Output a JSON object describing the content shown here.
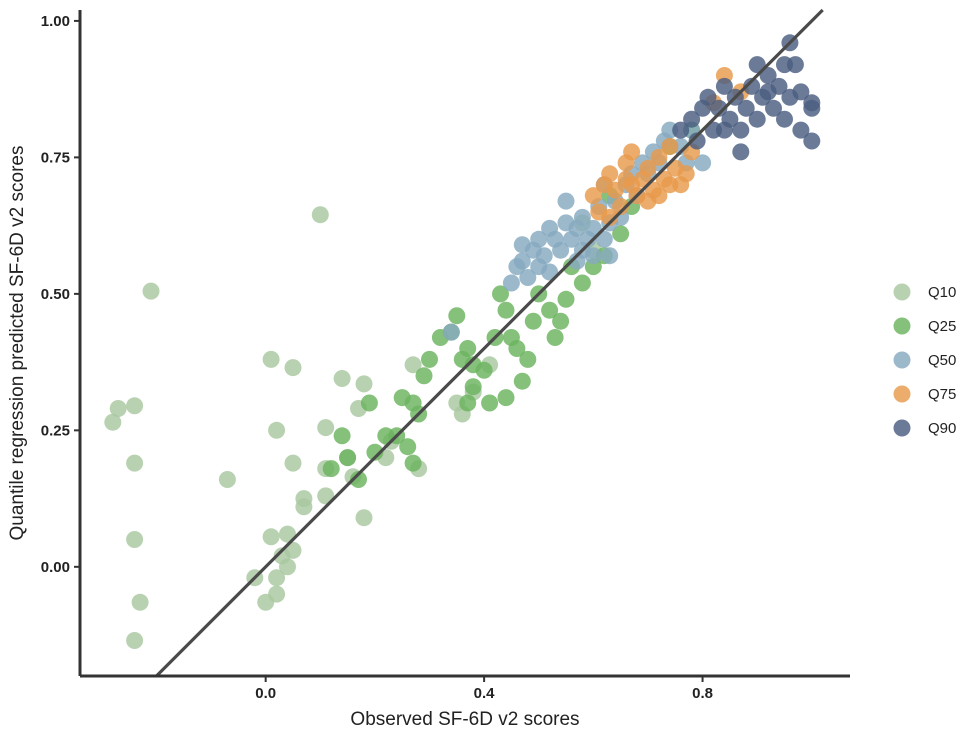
{
  "chart_data": {
    "type": "scatter",
    "title": "",
    "xlabel": "Observed SF-6D v2 scores",
    "ylabel": "Quantile regression predicted SF-6D v2 scores",
    "xlim": [
      -0.34,
      1.07
    ],
    "ylim": [
      -0.2,
      1.02
    ],
    "x_ticks": [
      {
        "value": 0.0,
        "label": "0.0"
      },
      {
        "value": 0.4,
        "label": "0.4"
      },
      {
        "value": 0.8,
        "label": "0.8"
      }
    ],
    "y_ticks": [
      {
        "value": 0.0,
        "label": "0.00"
      },
      {
        "value": 0.25,
        "label": "0.25"
      },
      {
        "value": 0.5,
        "label": "0.50"
      },
      {
        "value": 0.75,
        "label": "0.75"
      },
      {
        "value": 1.0,
        "label": "1.00"
      }
    ],
    "grid": false,
    "legend_position": "right",
    "reference_line": {
      "type": "identity",
      "color": "#4a4a4a"
    },
    "series": [
      {
        "name": "Q10",
        "color": "#a8c8a0",
        "points": [
          [
            -0.28,
            0.265
          ],
          [
            -0.27,
            0.29
          ],
          [
            -0.24,
            0.295
          ],
          [
            -0.24,
            0.19
          ],
          [
            -0.24,
            0.05
          ],
          [
            -0.23,
            -0.065
          ],
          [
            -0.24,
            -0.135
          ],
          [
            -0.21,
            0.505
          ],
          [
            -0.07,
            0.16
          ],
          [
            0.01,
            0.38
          ],
          [
            0.02,
            0.25
          ],
          [
            0.05,
            0.365
          ],
          [
            0.05,
            0.19
          ],
          [
            0.07,
            0.125
          ],
          [
            0.07,
            0.11
          ],
          [
            0.1,
            0.645
          ],
          [
            0.11,
            0.255
          ],
          [
            0.11,
            0.18
          ],
          [
            0.11,
            0.13
          ],
          [
            0.14,
            0.345
          ],
          [
            0.15,
            0.2
          ],
          [
            0.16,
            0.165
          ],
          [
            0.17,
            0.29
          ],
          [
            0.18,
            0.335
          ],
          [
            0.18,
            0.09
          ],
          [
            0.04,
            0.06
          ],
          [
            0.03,
            0.02
          ],
          [
            0.01,
            0.055
          ],
          [
            0.02,
            -0.02
          ],
          [
            0.0,
            -0.065
          ],
          [
            -0.02,
            -0.02
          ],
          [
            0.04,
            0.0
          ],
          [
            0.05,
            0.03
          ],
          [
            0.02,
            -0.05
          ],
          [
            0.22,
            0.2
          ],
          [
            0.23,
            0.23
          ],
          [
            0.27,
            0.37
          ],
          [
            0.28,
            0.18
          ],
          [
            0.35,
            0.3
          ],
          [
            0.38,
            0.32
          ],
          [
            0.41,
            0.37
          ],
          [
            0.36,
            0.28
          ],
          [
            0.58,
            0.63
          ],
          [
            0.6,
            0.58
          ]
        ]
      },
      {
        "name": "Q25",
        "color": "#6bb35f",
        "points": [
          [
            0.12,
            0.18
          ],
          [
            0.14,
            0.24
          ],
          [
            0.15,
            0.2
          ],
          [
            0.17,
            0.16
          ],
          [
            0.2,
            0.21
          ],
          [
            0.22,
            0.24
          ],
          [
            0.24,
            0.24
          ],
          [
            0.25,
            0.31
          ],
          [
            0.27,
            0.3
          ],
          [
            0.28,
            0.28
          ],
          [
            0.27,
            0.19
          ],
          [
            0.29,
            0.35
          ],
          [
            0.3,
            0.38
          ],
          [
            0.32,
            0.42
          ],
          [
            0.34,
            0.43
          ],
          [
            0.35,
            0.46
          ],
          [
            0.36,
            0.38
          ],
          [
            0.37,
            0.4
          ],
          [
            0.38,
            0.37
          ],
          [
            0.38,
            0.33
          ],
          [
            0.4,
            0.36
          ],
          [
            0.41,
            0.3
          ],
          [
            0.42,
            0.42
          ],
          [
            0.43,
            0.5
          ],
          [
            0.44,
            0.47
          ],
          [
            0.45,
            0.42
          ],
          [
            0.46,
            0.4
          ],
          [
            0.47,
            0.34
          ],
          [
            0.48,
            0.38
          ],
          [
            0.49,
            0.45
          ],
          [
            0.5,
            0.5
          ],
          [
            0.52,
            0.47
          ],
          [
            0.53,
            0.42
          ],
          [
            0.54,
            0.45
          ],
          [
            0.55,
            0.49
          ],
          [
            0.56,
            0.55
          ],
          [
            0.58,
            0.52
          ],
          [
            0.6,
            0.55
          ],
          [
            0.62,
            0.57
          ],
          [
            0.63,
            0.68
          ],
          [
            0.65,
            0.61
          ],
          [
            0.67,
            0.66
          ],
          [
            0.44,
            0.31
          ],
          [
            0.37,
            0.3
          ],
          [
            0.26,
            0.22
          ],
          [
            0.19,
            0.3
          ],
          [
            0.74,
            0.77
          ],
          [
            0.78,
            0.8
          ]
        ]
      },
      {
        "name": "Q50",
        "color": "#86a9bf",
        "points": [
          [
            0.45,
            0.52
          ],
          [
            0.46,
            0.55
          ],
          [
            0.47,
            0.56
          ],
          [
            0.48,
            0.53
          ],
          [
            0.49,
            0.58
          ],
          [
            0.5,
            0.55
          ],
          [
            0.5,
            0.6
          ],
          [
            0.51,
            0.57
          ],
          [
            0.52,
            0.62
          ],
          [
            0.53,
            0.6
          ],
          [
            0.54,
            0.58
          ],
          [
            0.55,
            0.63
          ],
          [
            0.55,
            0.67
          ],
          [
            0.56,
            0.6
          ],
          [
            0.57,
            0.56
          ],
          [
            0.58,
            0.58
          ],
          [
            0.58,
            0.64
          ],
          [
            0.59,
            0.6
          ],
          [
            0.6,
            0.62
          ],
          [
            0.61,
            0.66
          ],
          [
            0.62,
            0.6
          ],
          [
            0.62,
            0.7
          ],
          [
            0.63,
            0.63
          ],
          [
            0.64,
            0.67
          ],
          [
            0.65,
            0.64
          ],
          [
            0.66,
            0.7
          ],
          [
            0.67,
            0.72
          ],
          [
            0.68,
            0.68
          ],
          [
            0.69,
            0.74
          ],
          [
            0.7,
            0.72
          ],
          [
            0.71,
            0.76
          ],
          [
            0.72,
            0.74
          ],
          [
            0.73,
            0.78
          ],
          [
            0.74,
            0.8
          ],
          [
            0.76,
            0.77
          ],
          [
            0.77,
            0.74
          ],
          [
            0.78,
            0.8
          ],
          [
            0.8,
            0.74
          ],
          [
            0.52,
            0.54
          ],
          [
            0.6,
            0.57
          ],
          [
            0.47,
            0.59
          ],
          [
            0.57,
            0.62
          ],
          [
            0.63,
            0.57
          ],
          [
            0.34,
            0.43
          ]
        ]
      },
      {
        "name": "Q75",
        "color": "#e89a4c",
        "points": [
          [
            0.6,
            0.68
          ],
          [
            0.61,
            0.65
          ],
          [
            0.62,
            0.7
          ],
          [
            0.63,
            0.72
          ],
          [
            0.64,
            0.69
          ],
          [
            0.65,
            0.66
          ],
          [
            0.66,
            0.74
          ],
          [
            0.67,
            0.7
          ],
          [
            0.67,
            0.76
          ],
          [
            0.68,
            0.68
          ],
          [
            0.69,
            0.71
          ],
          [
            0.7,
            0.73
          ],
          [
            0.71,
            0.69
          ],
          [
            0.72,
            0.75
          ],
          [
            0.73,
            0.71
          ],
          [
            0.74,
            0.77
          ],
          [
            0.75,
            0.73
          ],
          [
            0.76,
            0.7
          ],
          [
            0.77,
            0.72
          ],
          [
            0.66,
            0.71
          ],
          [
            0.7,
            0.67
          ],
          [
            0.74,
            0.7
          ],
          [
            0.78,
            0.76
          ],
          [
            0.82,
            0.85
          ],
          [
            0.84,
            0.9
          ],
          [
            0.87,
            0.87
          ],
          [
            0.63,
            0.64
          ],
          [
            0.72,
            0.68
          ]
        ]
      },
      {
        "name": "Q90",
        "color": "#4a5e80",
        "points": [
          [
            0.76,
            0.8
          ],
          [
            0.78,
            0.82
          ],
          [
            0.8,
            0.84
          ],
          [
            0.81,
            0.86
          ],
          [
            0.82,
            0.8
          ],
          [
            0.83,
            0.84
          ],
          [
            0.84,
            0.88
          ],
          [
            0.85,
            0.82
          ],
          [
            0.86,
            0.86
          ],
          [
            0.87,
            0.8
          ],
          [
            0.88,
            0.84
          ],
          [
            0.89,
            0.88
          ],
          [
            0.9,
            0.82
          ],
          [
            0.91,
            0.86
          ],
          [
            0.92,
            0.9
          ],
          [
            0.93,
            0.84
          ],
          [
            0.94,
            0.88
          ],
          [
            0.95,
            0.82
          ],
          [
            0.96,
            0.86
          ],
          [
            0.97,
            0.92
          ],
          [
            0.98,
            0.8
          ],
          [
            1.0,
            0.78
          ],
          [
            1.0,
            0.84
          ],
          [
            1.0,
            0.85
          ],
          [
            0.96,
            0.96
          ],
          [
            0.9,
            0.92
          ],
          [
            0.87,
            0.76
          ],
          [
            0.84,
            0.8
          ],
          [
            0.79,
            0.78
          ],
          [
            0.95,
            0.92
          ],
          [
            0.92,
            0.87
          ],
          [
            0.98,
            0.87
          ]
        ]
      }
    ]
  }
}
